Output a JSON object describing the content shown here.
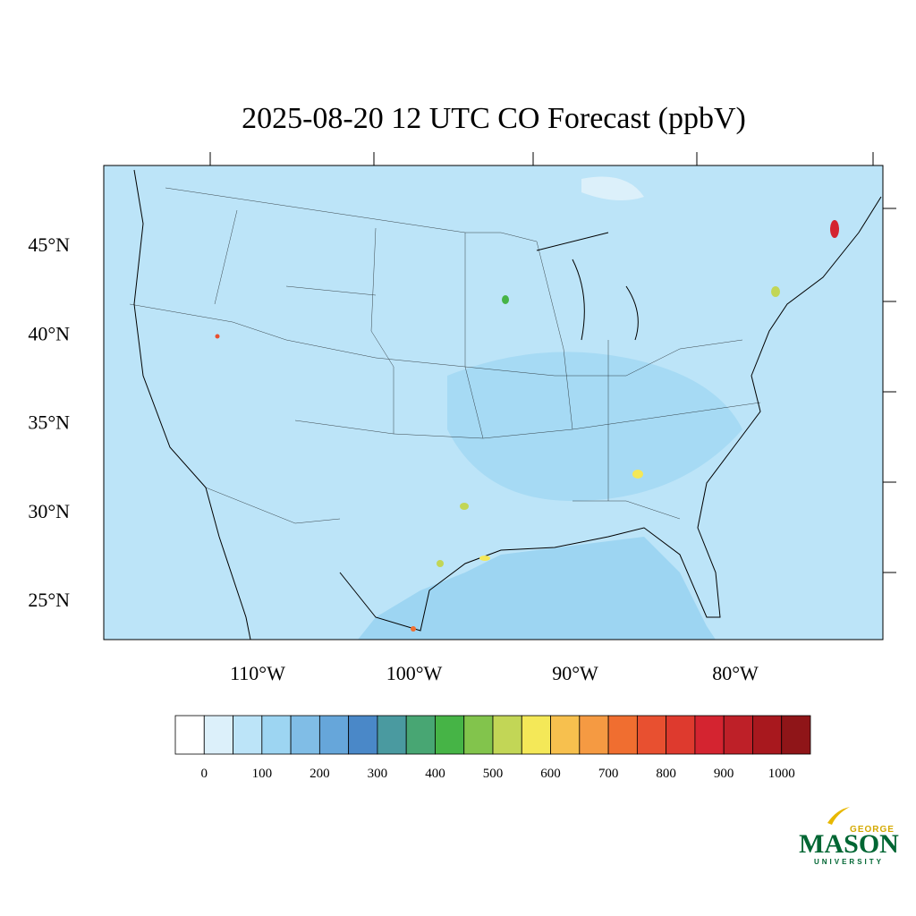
{
  "title": "2025-08-20 12 UTC CO Forecast (ppbV)",
  "lat_labels": [
    "45°N",
    "40°N",
    "35°N",
    "30°N",
    "25°N"
  ],
  "lon_labels": [
    "110°W",
    "100°W",
    "90°W",
    "80°W"
  ],
  "colorbar": {
    "colors": [
      "#ffffff",
      "#dcf0fa",
      "#bce4f8",
      "#9dd5f2",
      "#80bde6",
      "#66a6da",
      "#4a88c8",
      "#4a9aa0",
      "#48a673",
      "#46b446",
      "#82c44c",
      "#c2d656",
      "#f4e858",
      "#f7c04e",
      "#f59a42",
      "#f06e30",
      "#e85030",
      "#de3a2e",
      "#d42430",
      "#be2028",
      "#a8181e",
      "#8f1518"
    ],
    "labels": [
      "0",
      "100",
      "200",
      "300",
      "400",
      "500",
      "600",
      "700",
      "800",
      "900",
      "1000"
    ]
  },
  "logo": {
    "top": "GEORGE",
    "main": "MASON",
    "bottom": "UNIVERSITY"
  }
}
